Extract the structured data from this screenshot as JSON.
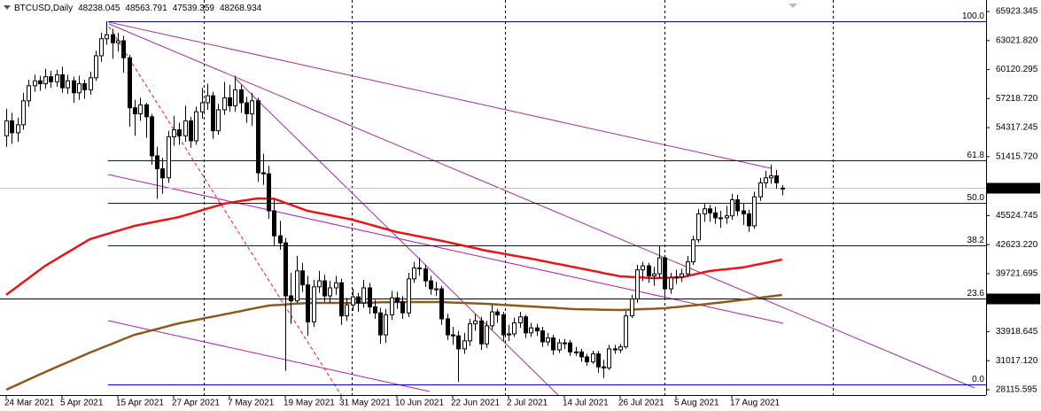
{
  "chart_data": {
    "type": "candlestick",
    "title": "BTCUSD,Daily",
    "categories": [
      "24 Mar 2021",
      null,
      null,
      null,
      null,
      null,
      null,
      null,
      null,
      null,
      "5 Apr 2021",
      null,
      null,
      null,
      null,
      null,
      null,
      null,
      null,
      null,
      "15 Apr 2021",
      null,
      null,
      null,
      null,
      null,
      null,
      null,
      null,
      null,
      "27 Apr 2021",
      null,
      null,
      null,
      null,
      null,
      null,
      null,
      null,
      null,
      "7 May 2021",
      null,
      null,
      null,
      null,
      null,
      null,
      null,
      null,
      null,
      "19 May 2021",
      null,
      null,
      null,
      null,
      null,
      null,
      null,
      null,
      null,
      "31 May 2021",
      null,
      null,
      null,
      null,
      null,
      null,
      null,
      null,
      null,
      "10 Jun 2021",
      null,
      null,
      null,
      null,
      null,
      null,
      null,
      null,
      null,
      "22 Jun 2021",
      null,
      null,
      null,
      null,
      null,
      null,
      null,
      null,
      null,
      "2 Jul 2021",
      null,
      null,
      null,
      null,
      null,
      null,
      null,
      null,
      null,
      "14 Jul 2021",
      null,
      null,
      null,
      null,
      null,
      null,
      null,
      null,
      null,
      "26 Jul 2021",
      null,
      null,
      null,
      null,
      null,
      null,
      null,
      null,
      null,
      "5 Aug 2021",
      null,
      null,
      null,
      null,
      null,
      null,
      null,
      null,
      null,
      "17 Aug 2021",
      null,
      null,
      null,
      null,
      null,
      null,
      null,
      null,
      null
    ],
    "open": [
      53500,
      55000,
      53800,
      54600,
      57000,
      58500,
      59000,
      58700,
      59400,
      58900,
      59600,
      58300,
      59000,
      57800,
      58700,
      58100,
      59300,
      61500,
      63200,
      63600,
      62800,
      63000,
      61300,
      56300,
      55700,
      56600,
      55400,
      51500,
      50200,
      49300,
      53400,
      54100,
      53500,
      55000,
      53000,
      55900,
      56800,
      57500,
      54000,
      56100,
      57300,
      56500,
      58100,
      56800,
      55700,
      57000,
      49800,
      49700,
      46000,
      43500,
      42800,
      37500,
      37000,
      40000,
      38600,
      34900,
      38400,
      39000,
      37500,
      38300,
      38800,
      35500,
      36600,
      37400,
      36800,
      38300,
      36400,
      35800,
      33600,
      35600,
      37300,
      36900,
      35800,
      39200,
      40300,
      40200,
      39000,
      38200,
      38200,
      35200,
      33600,
      33500,
      32200,
      33000,
      34700,
      35000,
      32700,
      34500,
      35900,
      35600,
      33600,
      33700,
      34800,
      35400,
      33800,
      34300,
      34000,
      32900,
      33300,
      32100,
      32800,
      32800,
      31900,
      31900,
      31400,
      30900,
      31700,
      30400,
      30300,
      32200,
      32100,
      32400,
      35500,
      37200,
      40100,
      40500,
      39500,
      39700,
      41300,
      38200,
      39300,
      39400,
      39700,
      40900,
      43100,
      45700,
      46200,
      45800,
      45300,
      45300,
      45500,
      47100,
      46000,
      45700,
      44500,
      47400,
      48800,
      49300,
      49500,
      48238.045
    ],
    "high": [
      56200,
      55800,
      55300,
      57800,
      59100,
      59600,
      59500,
      60200,
      60000,
      60100,
      60400,
      59600,
      59400,
      59500,
      59100,
      59900,
      62000,
      63800,
      64950,
      64200,
      63800,
      63500,
      61600,
      57100,
      57300,
      56800,
      55700,
      52400,
      51300,
      54000,
      55500,
      54800,
      56500,
      55400,
      56400,
      58300,
      58700,
      57900,
      56700,
      58900,
      58600,
      59500,
      58600,
      57400,
      57800,
      57300,
      51700,
      50500,
      47200,
      45000,
      43300,
      39800,
      41500,
      40800,
      39500,
      39100,
      40000,
      39600,
      39000,
      39500,
      39200,
      37300,
      38200,
      37800,
      39100,
      38800,
      37100,
      36300,
      36200,
      38000,
      37900,
      37500,
      39800,
      40900,
      41300,
      40600,
      39500,
      38900,
      38500,
      35700,
      34400,
      34000,
      33800,
      35200,
      35700,
      35400,
      35000,
      36600,
      36200,
      35900,
      34600,
      35300,
      35900,
      35600,
      34800,
      34700,
      34400,
      33800,
      33600,
      33200,
      33200,
      33100,
      32400,
      32200,
      31700,
      32000,
      32000,
      31100,
      32600,
      32600,
      32700,
      36000,
      37600,
      40600,
      40900,
      40800,
      40400,
      42500,
      41600,
      39800,
      40100,
      40200,
      41500,
      43500,
      46200,
      46700,
      46600,
      46400,
      46000,
      46500,
      47700,
      47600,
      46800,
      46100,
      47900,
      49300,
      50000,
      50600,
      50100,
      48563.791
    ],
    "low": [
      52400,
      52700,
      52900,
      54100,
      56400,
      57900,
      58000,
      58200,
      58300,
      58400,
      57800,
      57700,
      56800,
      57100,
      57200,
      57600,
      59000,
      60900,
      62600,
      61200,
      61900,
      59800,
      54400,
      53500,
      55000,
      53300,
      50600,
      47200,
      47700,
      48800,
      52500,
      52600,
      52900,
      52300,
      52600,
      55200,
      56100,
      53200,
      53600,
      55600,
      55900,
      55900,
      55800,
      54800,
      54500,
      48900,
      48600,
      45200,
      42500,
      42100,
      30000,
      34700,
      36800,
      37900,
      33500,
      34400,
      37800,
      36900,
      36800,
      37600,
      34600,
      35000,
      36000,
      35900,
      36300,
      35700,
      35200,
      32700,
      32800,
      35100,
      36200,
      35200,
      35400,
      38800,
      39500,
      38400,
      37600,
      37500,
      34600,
      33100,
      32600,
      28900,
      31700,
      32500,
      34000,
      32100,
      32300,
      34100,
      34800,
      33000,
      33000,
      33400,
      34300,
      33300,
      33400,
      33500,
      32400,
      32500,
      31600,
      31800,
      32200,
      31500,
      31500,
      30900,
      30500,
      30700,
      29800,
      29300,
      30100,
      31700,
      31800,
      32200,
      35300,
      36800,
      39000,
      38800,
      38500,
      39300,
      37400,
      37700,
      38700,
      38900,
      39400,
      40600,
      42800,
      44900,
      44900,
      44700,
      44300,
      44700,
      45100,
      45500,
      44600,
      43900,
      44200,
      47000,
      48300,
      48700,
      48200,
      47539.359
    ],
    "close": [
      55000,
      53800,
      54600,
      57000,
      58500,
      59000,
      58700,
      59400,
      58900,
      59600,
      58300,
      59000,
      57800,
      58700,
      58100,
      59300,
      61500,
      63200,
      63600,
      62800,
      63000,
      61300,
      56300,
      55700,
      56600,
      55400,
      51500,
      50200,
      49300,
      53400,
      54100,
      53500,
      55000,
      53000,
      55900,
      56800,
      57500,
      54000,
      56100,
      57300,
      56500,
      58100,
      56800,
      55700,
      57000,
      49800,
      49700,
      46000,
      43500,
      42800,
      37500,
      37000,
      40000,
      38600,
      34900,
      38400,
      39000,
      37500,
      38300,
      38800,
      35500,
      36600,
      37400,
      36800,
      38300,
      36400,
      35800,
      33600,
      35600,
      37300,
      36900,
      35800,
      39200,
      40300,
      40200,
      39000,
      38200,
      38200,
      35200,
      33600,
      33500,
      32200,
      33000,
      34700,
      35000,
      32700,
      34500,
      35900,
      35600,
      33600,
      33700,
      34800,
      35400,
      33800,
      34300,
      34000,
      32900,
      33300,
      32100,
      32800,
      32800,
      31900,
      31900,
      31400,
      30900,
      31700,
      30400,
      30300,
      32200,
      32100,
      32400,
      35500,
      37200,
      40100,
      40500,
      39500,
      39700,
      41300,
      38200,
      39300,
      39400,
      39700,
      40900,
      43100,
      45700,
      46200,
      45800,
      45300,
      45300,
      45500,
      47100,
      46000,
      45700,
      44500,
      47400,
      48800,
      49300,
      49500,
      48800,
      48268.934
    ],
    "up_color": "#ffffff",
    "down_color": "#000000",
    "ma_lines": [
      {
        "color": "#e8141a",
        "values": [
          37600,
          38020,
          38430,
          38850,
          39260,
          39680,
          40090,
          40510,
          40840,
          41170,
          41510,
          41840,
          42170,
          42510,
          42840,
          43170,
          43340,
          43500,
          43670,
          43840,
          44000,
          44170,
          44330,
          44500,
          44610,
          44720,
          44830,
          44940,
          45050,
          45160,
          45270,
          45380,
          45550,
          45710,
          45880,
          46050,
          46210,
          46380,
          46540,
          46710,
          46800,
          46890,
          46980,
          47060,
          47150,
          47240,
          47230,
          47210,
          47200,
          47000,
          46800,
          46600,
          46400,
          46200,
          46000,
          45890,
          45780,
          45670,
          45560,
          45450,
          45340,
          45230,
          45115,
          44960,
          44810,
          44650,
          44500,
          44340,
          44190,
          44030,
          43880,
          43770,
          43660,
          43550,
          43440,
          43330,
          43220,
          43110,
          43000,
          42880,
          42760,
          42630,
          42510,
          42390,
          42270,
          42140,
          42020,
          41920,
          41820,
          41720,
          41620,
          41520,
          41420,
          41320,
          41220,
          41110,
          41000,
          40890,
          40780,
          40670,
          40560,
          40450,
          40340,
          40230,
          40120,
          40010,
          39900,
          39780,
          39670,
          39560,
          39450,
          39420,
          39390,
          39360,
          39330,
          39300,
          39270,
          39290,
          39310,
          39320,
          39340,
          39360,
          39480,
          39610,
          39730,
          39860,
          39980,
          40040,
          40100,
          40160,
          40220,
          40280,
          40340,
          40450,
          40570,
          40680,
          40790,
          40900,
          41020,
          41130
        ]
      },
      {
        "color": "#8b5a1e",
        "values": [
          28115,
          28370,
          28620,
          28880,
          29130,
          29380,
          29640,
          29890,
          30130,
          30380,
          30620,
          30860,
          31100,
          31350,
          31590,
          31830,
          32050,
          32280,
          32500,
          32720,
          32940,
          33170,
          33390,
          33610,
          33750,
          33900,
          34040,
          34180,
          34330,
          34470,
          34620,
          34760,
          34870,
          34980,
          35090,
          35200,
          35310,
          35420,
          35530,
          35640,
          35750,
          35860,
          35970,
          36090,
          36200,
          36310,
          36420,
          36530,
          36570,
          36600,
          36640,
          36680,
          36720,
          36750,
          36790,
          36790,
          36790,
          36790,
          36790,
          36790,
          36790,
          36790,
          36790,
          36800,
          36810,
          36820,
          36830,
          36850,
          36860,
          36870,
          36880,
          36880,
          36880,
          36880,
          36880,
          36880,
          36880,
          36880,
          36880,
          36860,
          36830,
          36810,
          36790,
          36770,
          36750,
          36720,
          36700,
          36670,
          36640,
          36600,
          36570,
          36540,
          36510,
          36470,
          36440,
          36410,
          36370,
          36340,
          36310,
          36270,
          36240,
          36200,
          36170,
          36160,
          36150,
          36140,
          36130,
          36110,
          36100,
          36090,
          36080,
          36100,
          36120,
          36150,
          36170,
          36190,
          36210,
          36240,
          36260,
          36320,
          36370,
          36430,
          36490,
          36540,
          36600,
          36650,
          36710,
          36780,
          36840,
          36910,
          36970,
          37040,
          37110,
          37170,
          37240,
          37310,
          37380,
          37450,
          37520,
          37590
        ]
      }
    ],
    "fib": {
      "color": "#0000c8",
      "labels": [
        "100.0",
        "61.8",
        "50.0",
        "38.2",
        "23.6",
        "0.0"
      ],
      "values": [
        64949,
        51082,
        46799,
        42515,
        37215,
        28648
      ]
    },
    "level": 37193.164,
    "ylim": [
      27584,
      67074
    ],
    "yticks": [
      65923.345,
      {
        "value": 63021.82,
        "label": "63021.820"
      },
      60120.295,
      {
        "value": 57218.72,
        "label": "57218.720"
      },
      54317.245,
      {
        "value": 51415.72,
        "label": "51415.720"
      },
      45524.745,
      {
        "value": 42623.22,
        "label": "42623.220"
      },
      39721.695,
      33918.645,
      {
        "value": 31017.12,
        "label": "31017.120"
      },
      28115.595
    ]
  }
}
